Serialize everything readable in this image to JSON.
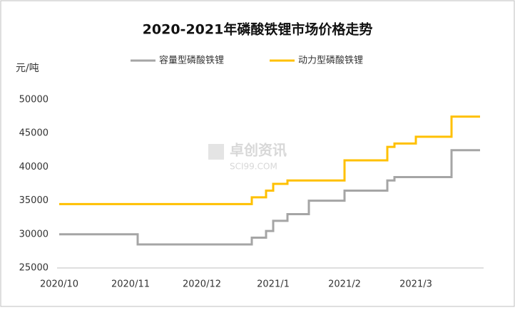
{
  "chart_data": {
    "type": "line",
    "step": true,
    "title": "2020-2021年磷酸铁锂市场价格走势",
    "y_label": "元/吨",
    "watermark": [
      "卓创资讯",
      "SCI99.COM"
    ],
    "categories": [
      "2020/10",
      null,
      null,
      null,
      null,
      null,
      null,
      null,
      null,
      null,
      "2020/11",
      null,
      null,
      null,
      null,
      null,
      null,
      null,
      null,
      null,
      "2020/12",
      null,
      null,
      null,
      null,
      null,
      null,
      null,
      null,
      null,
      "2021/1",
      null,
      null,
      null,
      null,
      null,
      null,
      null,
      null,
      null,
      "2021/2",
      null,
      null,
      null,
      null,
      null,
      null,
      null,
      null,
      null,
      "2021/3",
      null,
      null,
      null,
      null,
      null,
      null,
      null,
      null,
      null
    ],
    "series": [
      {
        "name": "容量型磷酸铁锂",
        "color": "#a5a5a5",
        "values": [
          30000,
          30000,
          30000,
          30000,
          30000,
          30000,
          30000,
          30000,
          30000,
          30000,
          30000,
          28500,
          28500,
          28500,
          28500,
          28500,
          28500,
          28500,
          28500,
          28500,
          28500,
          28500,
          28500,
          28500,
          28500,
          28500,
          28500,
          29500,
          29500,
          30500,
          32000,
          32000,
          33000,
          33000,
          33000,
          35000,
          35000,
          35000,
          35000,
          35000,
          36500,
          36500,
          36500,
          36500,
          36500,
          36500,
          38000,
          38500,
          38500,
          38500,
          38500,
          38500,
          38500,
          38500,
          38500,
          42500,
          42500,
          42500,
          42500,
          42500
        ]
      },
      {
        "name": "动力型磷酸铁锂",
        "color": "#ffc000",
        "values": [
          34500,
          34500,
          34500,
          34500,
          34500,
          34500,
          34500,
          34500,
          34500,
          34500,
          34500,
          34500,
          34500,
          34500,
          34500,
          34500,
          34500,
          34500,
          34500,
          34500,
          34500,
          34500,
          34500,
          34500,
          34500,
          34500,
          34500,
          35500,
          35500,
          36500,
          37500,
          37500,
          38000,
          38000,
          38000,
          38000,
          38000,
          38000,
          38000,
          38000,
          41000,
          41000,
          41000,
          41000,
          41000,
          41000,
          43000,
          43500,
          43500,
          43500,
          44500,
          44500,
          44500,
          44500,
          44500,
          47500,
          47500,
          47500,
          47500,
          47500
        ]
      }
    ],
    "ylim": [
      25000,
      50000
    ],
    "yticks": [
      25000,
      30000,
      35000,
      40000,
      45000,
      50000
    ],
    "grid": false
  }
}
